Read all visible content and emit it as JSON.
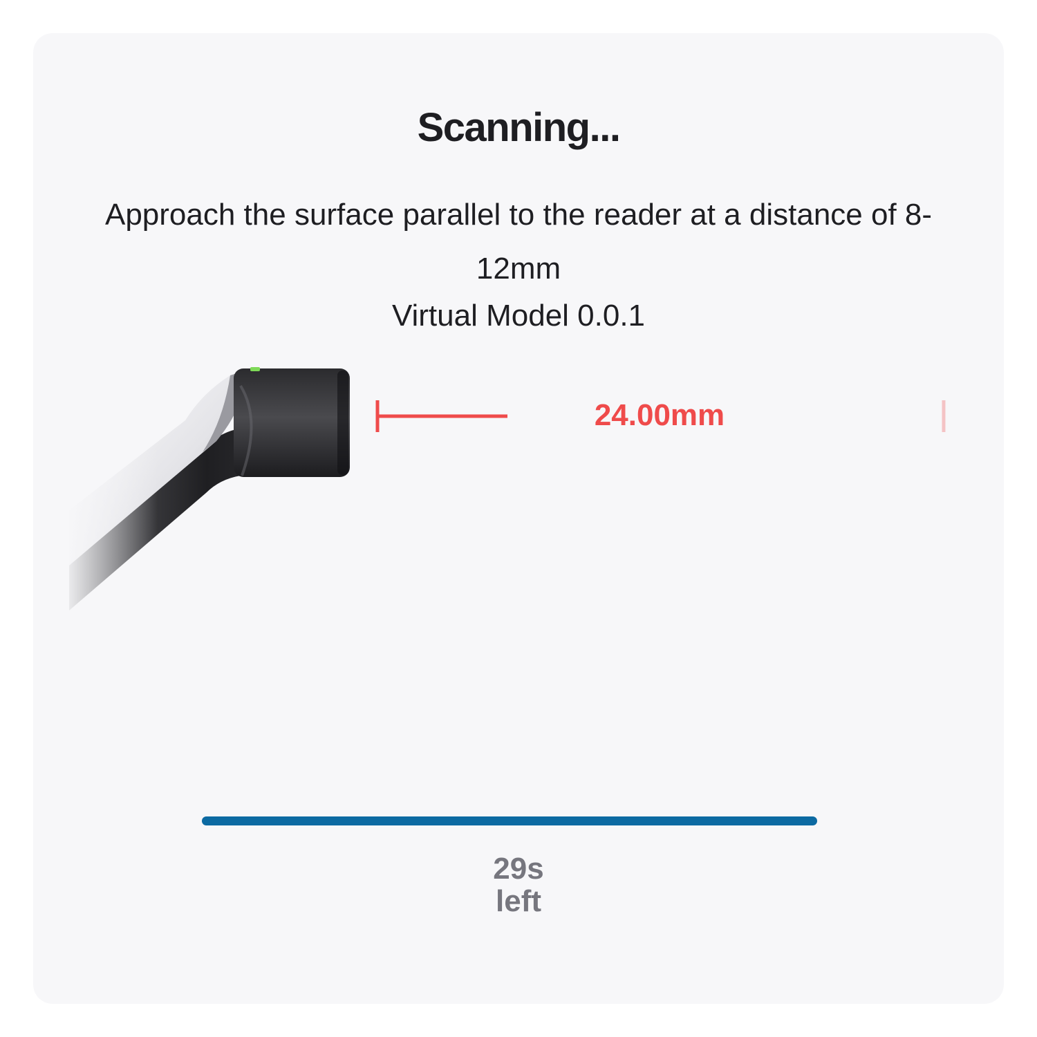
{
  "scan_panel": {
    "title": "Scanning...",
    "instruction": "Approach the surface parallel to the reader at a distance of 8-12mm",
    "model": "Virtual Model 0.0.1",
    "distance_readout": "24.00mm",
    "progress_fraction": 1.0,
    "timer_value": "29s",
    "timer_suffix": "left"
  },
  "colors": {
    "accent_blue": "#0c6aa2",
    "warning_red": "#ef4b4b",
    "panel_background": "#f7f7f9",
    "text_dark": "#1e1e22",
    "text_muted": "#76767e"
  },
  "icons": {
    "device": "handheld-reader-icon",
    "measurement": "distance-bracket-icon"
  }
}
